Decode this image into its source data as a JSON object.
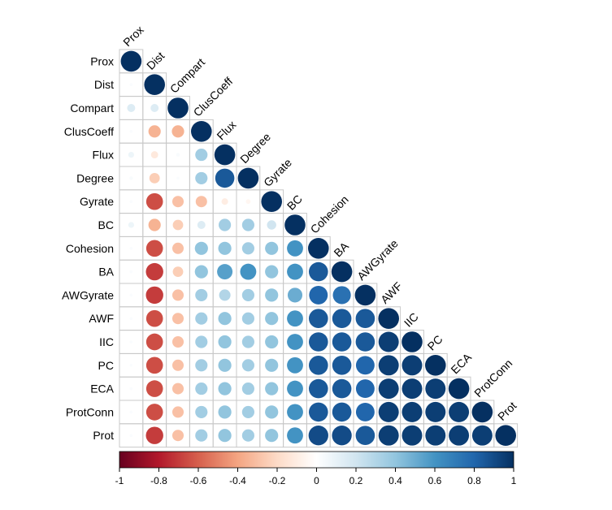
{
  "chart_data": {
    "type": "heatmap",
    "variables": [
      "Prox",
      "Dist",
      "Compart",
      "ClusCoeff",
      "Flux",
      "Degree",
      "Gyrate",
      "BC",
      "Cohesion",
      "BA",
      "AWGyrate",
      "AWF",
      "IIC",
      "PC",
      "ECA",
      "ProtConn",
      "Prot"
    ],
    "matrix_lower": [
      [
        1.0
      ],
      [
        0.02,
        1.0
      ],
      [
        0.15,
        0.15,
        1.0
      ],
      [
        0.02,
        -0.35,
        -0.35,
        1.0
      ],
      [
        0.08,
        -0.12,
        0.03,
        0.35,
        1.0
      ],
      [
        0.03,
        -0.25,
        0.02,
        0.35,
        0.85,
        1.0
      ],
      [
        0.02,
        -0.65,
        -0.3,
        -0.3,
        -0.1,
        -0.05,
        1.0
      ],
      [
        0.08,
        -0.35,
        -0.25,
        0.15,
        0.35,
        0.35,
        0.2,
        1.0
      ],
      [
        0.02,
        -0.65,
        -0.3,
        0.4,
        0.4,
        0.35,
        0.4,
        0.6,
        1.0
      ],
      [
        0.02,
        -0.7,
        -0.25,
        0.4,
        0.55,
        0.6,
        0.4,
        0.6,
        0.85,
        1.0
      ],
      [
        0.02,
        -0.7,
        -0.3,
        0.35,
        0.3,
        0.35,
        0.4,
        0.5,
        0.8,
        0.75,
        1.0
      ],
      [
        0.02,
        -0.65,
        -0.3,
        0.35,
        0.4,
        0.35,
        0.4,
        0.6,
        0.85,
        0.85,
        0.85,
        1.0
      ],
      [
        0.02,
        -0.65,
        -0.3,
        0.35,
        0.4,
        0.35,
        0.4,
        0.6,
        0.85,
        0.85,
        0.85,
        0.95,
        1.0
      ],
      [
        0.02,
        -0.65,
        -0.3,
        0.35,
        0.4,
        0.35,
        0.4,
        0.6,
        0.85,
        0.85,
        0.8,
        0.95,
        0.95,
        1.0
      ],
      [
        0.02,
        -0.65,
        -0.3,
        0.35,
        0.4,
        0.35,
        0.4,
        0.6,
        0.85,
        0.85,
        0.8,
        0.95,
        0.95,
        0.95,
        1.0
      ],
      [
        0.02,
        -0.65,
        -0.3,
        0.35,
        0.4,
        0.35,
        0.4,
        0.6,
        0.85,
        0.85,
        0.8,
        0.95,
        0.95,
        0.95,
        0.95,
        1.0
      ],
      [
        0.02,
        -0.7,
        -0.3,
        0.35,
        0.4,
        0.35,
        0.4,
        0.6,
        0.9,
        0.9,
        0.85,
        0.95,
        0.95,
        0.95,
        0.95,
        0.95,
        1.0
      ]
    ],
    "color_scale": {
      "range": [
        -1,
        1
      ],
      "ticks": [
        "-1",
        "-0.8",
        "-0.6",
        "-0.4",
        "-0.2",
        "0",
        "0.2",
        "0.4",
        "0.6",
        "0.8",
        "1"
      ],
      "stops": [
        "#67001F",
        "#B2182B",
        "#D6604D",
        "#F4A582",
        "#FDDBC7",
        "#FFFFFF",
        "#D1E5F0",
        "#92C5DE",
        "#4393C3",
        "#2166AC",
        "#053061"
      ]
    },
    "title": "",
    "xlabel": "",
    "ylabel": "",
    "grid": true,
    "legend_placement": "bottom"
  }
}
